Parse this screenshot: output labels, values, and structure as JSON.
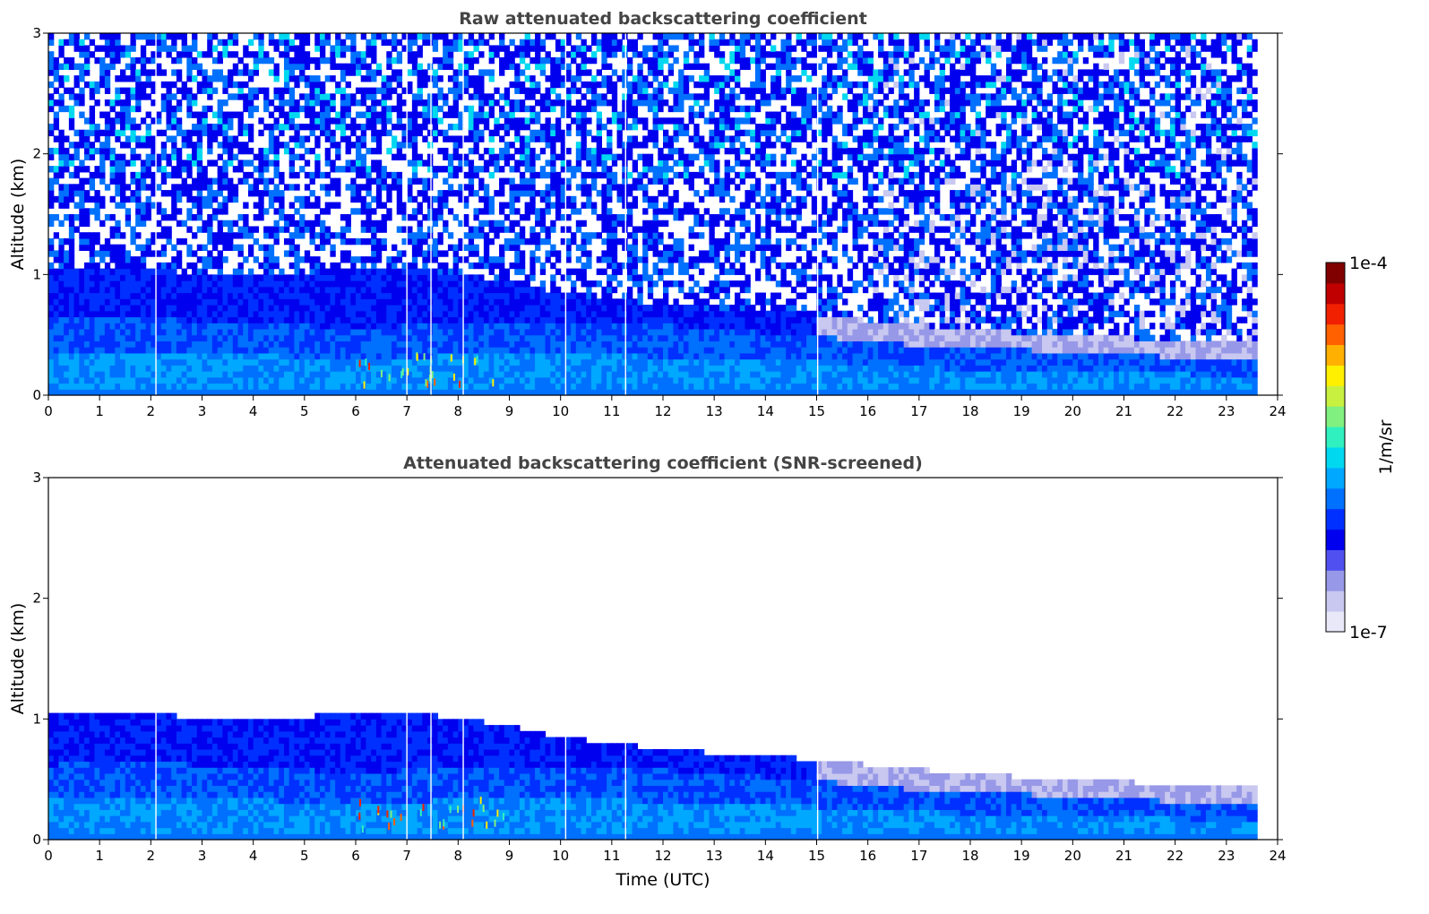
{
  "chart_data": [
    {
      "type": "heatmap",
      "title": "Raw attenuated backscattering coefficient",
      "xlabel": "",
      "ylabel": "Altitude (km)",
      "xlim": [
        0,
        24
      ],
      "ylim": [
        0,
        3
      ],
      "x_ticks": [
        "0",
        "1",
        "2",
        "3",
        "4",
        "5",
        "6",
        "7",
        "8",
        "9",
        "10",
        "11",
        "12",
        "13",
        "14",
        "15",
        "16",
        "17",
        "18",
        "19",
        "20",
        "21",
        "22",
        "23",
        "24"
      ],
      "y_ticks": [
        "0",
        "1",
        "2",
        "3"
      ],
      "data_end_time_h": 23.6,
      "data_gaps_h": [
        2.1,
        7.0,
        7.47,
        8.1,
        10.1,
        11.27,
        15.02
      ],
      "boundary_layer_top_km": [
        [
          0,
          0.62
        ],
        [
          1,
          0.65
        ],
        [
          2,
          0.64
        ],
        [
          3,
          0.62
        ],
        [
          4,
          0.6
        ],
        [
          5,
          0.58
        ],
        [
          6,
          0.56
        ],
        [
          7,
          0.58
        ],
        [
          8,
          0.6
        ],
        [
          9,
          0.62
        ],
        [
          10,
          0.62
        ],
        [
          11,
          0.6
        ],
        [
          12,
          0.58
        ],
        [
          13,
          0.56
        ],
        [
          14,
          0.52
        ],
        [
          15,
          0.5
        ],
        [
          16,
          0.44
        ],
        [
          17,
          0.42
        ],
        [
          18,
          0.4
        ],
        [
          19,
          0.38
        ],
        [
          20,
          0.36
        ],
        [
          21,
          0.34
        ],
        [
          22,
          0.32
        ],
        [
          23.6,
          0.31
        ]
      ],
      "residual_layer_top_km": [
        [
          0,
          1.05
        ],
        [
          1,
          1.07
        ],
        [
          2,
          1.05
        ],
        [
          3,
          1.0
        ],
        [
          4,
          1.0
        ],
        [
          5,
          1.02
        ],
        [
          6,
          1.05
        ],
        [
          7,
          1.07
        ],
        [
          8,
          1.0
        ],
        [
          9,
          0.95
        ],
        [
          10,
          0.85
        ],
        [
          11,
          0.8
        ],
        [
          12,
          0.75
        ],
        [
          13,
          0.72
        ],
        [
          14,
          0.7
        ],
        [
          15,
          0.66
        ],
        [
          16,
          0.62
        ],
        [
          17,
          0.58
        ],
        [
          18,
          0.55
        ],
        [
          19,
          0.52
        ],
        [
          20,
          0.5
        ],
        [
          21,
          0.48
        ],
        [
          22,
          0.46
        ],
        [
          23.6,
          0.45
        ]
      ],
      "aerosol_plumes_h": [
        [
          6.0,
          8.9
        ]
      ],
      "noise": true
    },
    {
      "type": "heatmap",
      "title": "Attenuated backscattering coefficient (SNR-screened)",
      "xlabel": "Time (UTC)",
      "ylabel": "Altitude (km)",
      "xlim": [
        0,
        24
      ],
      "ylim": [
        0,
        3
      ],
      "x_ticks": [
        "0",
        "1",
        "2",
        "3",
        "4",
        "5",
        "6",
        "7",
        "8",
        "9",
        "10",
        "11",
        "12",
        "13",
        "14",
        "15",
        "16",
        "17",
        "18",
        "19",
        "20",
        "21",
        "22",
        "23",
        "24"
      ],
      "y_ticks": [
        "0",
        "1",
        "2",
        "3"
      ],
      "data_end_time_h": 23.6,
      "data_gaps_h": [
        2.1,
        7.0,
        7.47,
        8.1,
        10.1,
        11.27,
        15.02
      ],
      "boundary_layer_top_km": [
        [
          0,
          0.62
        ],
        [
          1,
          0.65
        ],
        [
          2,
          0.64
        ],
        [
          3,
          0.62
        ],
        [
          4,
          0.6
        ],
        [
          5,
          0.58
        ],
        [
          6,
          0.56
        ],
        [
          7,
          0.58
        ],
        [
          8,
          0.6
        ],
        [
          9,
          0.62
        ],
        [
          10,
          0.62
        ],
        [
          11,
          0.6
        ],
        [
          12,
          0.58
        ],
        [
          13,
          0.56
        ],
        [
          14,
          0.52
        ],
        [
          15,
          0.5
        ],
        [
          16,
          0.44
        ],
        [
          17,
          0.42
        ],
        [
          18,
          0.4
        ],
        [
          19,
          0.38
        ],
        [
          20,
          0.36
        ],
        [
          21,
          0.34
        ],
        [
          22,
          0.32
        ],
        [
          23.6,
          0.31
        ]
      ],
      "residual_layer_top_km": [
        [
          0,
          1.05
        ],
        [
          1,
          1.07
        ],
        [
          2,
          1.05
        ],
        [
          3,
          1.0
        ],
        [
          4,
          1.0
        ],
        [
          5,
          1.02
        ],
        [
          6,
          1.05
        ],
        [
          7,
          1.07
        ],
        [
          8,
          1.0
        ],
        [
          9,
          0.95
        ],
        [
          10,
          0.85
        ],
        [
          11,
          0.8
        ],
        [
          12,
          0.75
        ],
        [
          13,
          0.72
        ],
        [
          14,
          0.7
        ],
        [
          15,
          0.66
        ],
        [
          16,
          0.62
        ],
        [
          17,
          0.58
        ],
        [
          18,
          0.55
        ],
        [
          19,
          0.52
        ],
        [
          20,
          0.5
        ],
        [
          21,
          0.48
        ],
        [
          22,
          0.46
        ],
        [
          23.6,
          0.45
        ]
      ],
      "aerosol_plumes_h": [
        [
          6.0,
          8.9
        ]
      ],
      "noise": false
    }
  ],
  "colorbar": {
    "label": "1/m/sr",
    "max_label": "1e-4",
    "min_label": "1e-7",
    "scale": "log",
    "range": [
      1e-07,
      0.0001
    ],
    "colors": [
      "#e8e8f8",
      "#c8c8f0",
      "#9898e8",
      "#5050f0",
      "#0000ee",
      "#0030ff",
      "#0070ff",
      "#00a8ff",
      "#00d8f0",
      "#30f0c0",
      "#80f080",
      "#c8f040",
      "#fff000",
      "#ffb000",
      "#ff6000",
      "#f02000",
      "#c00000",
      "#800000"
    ]
  }
}
